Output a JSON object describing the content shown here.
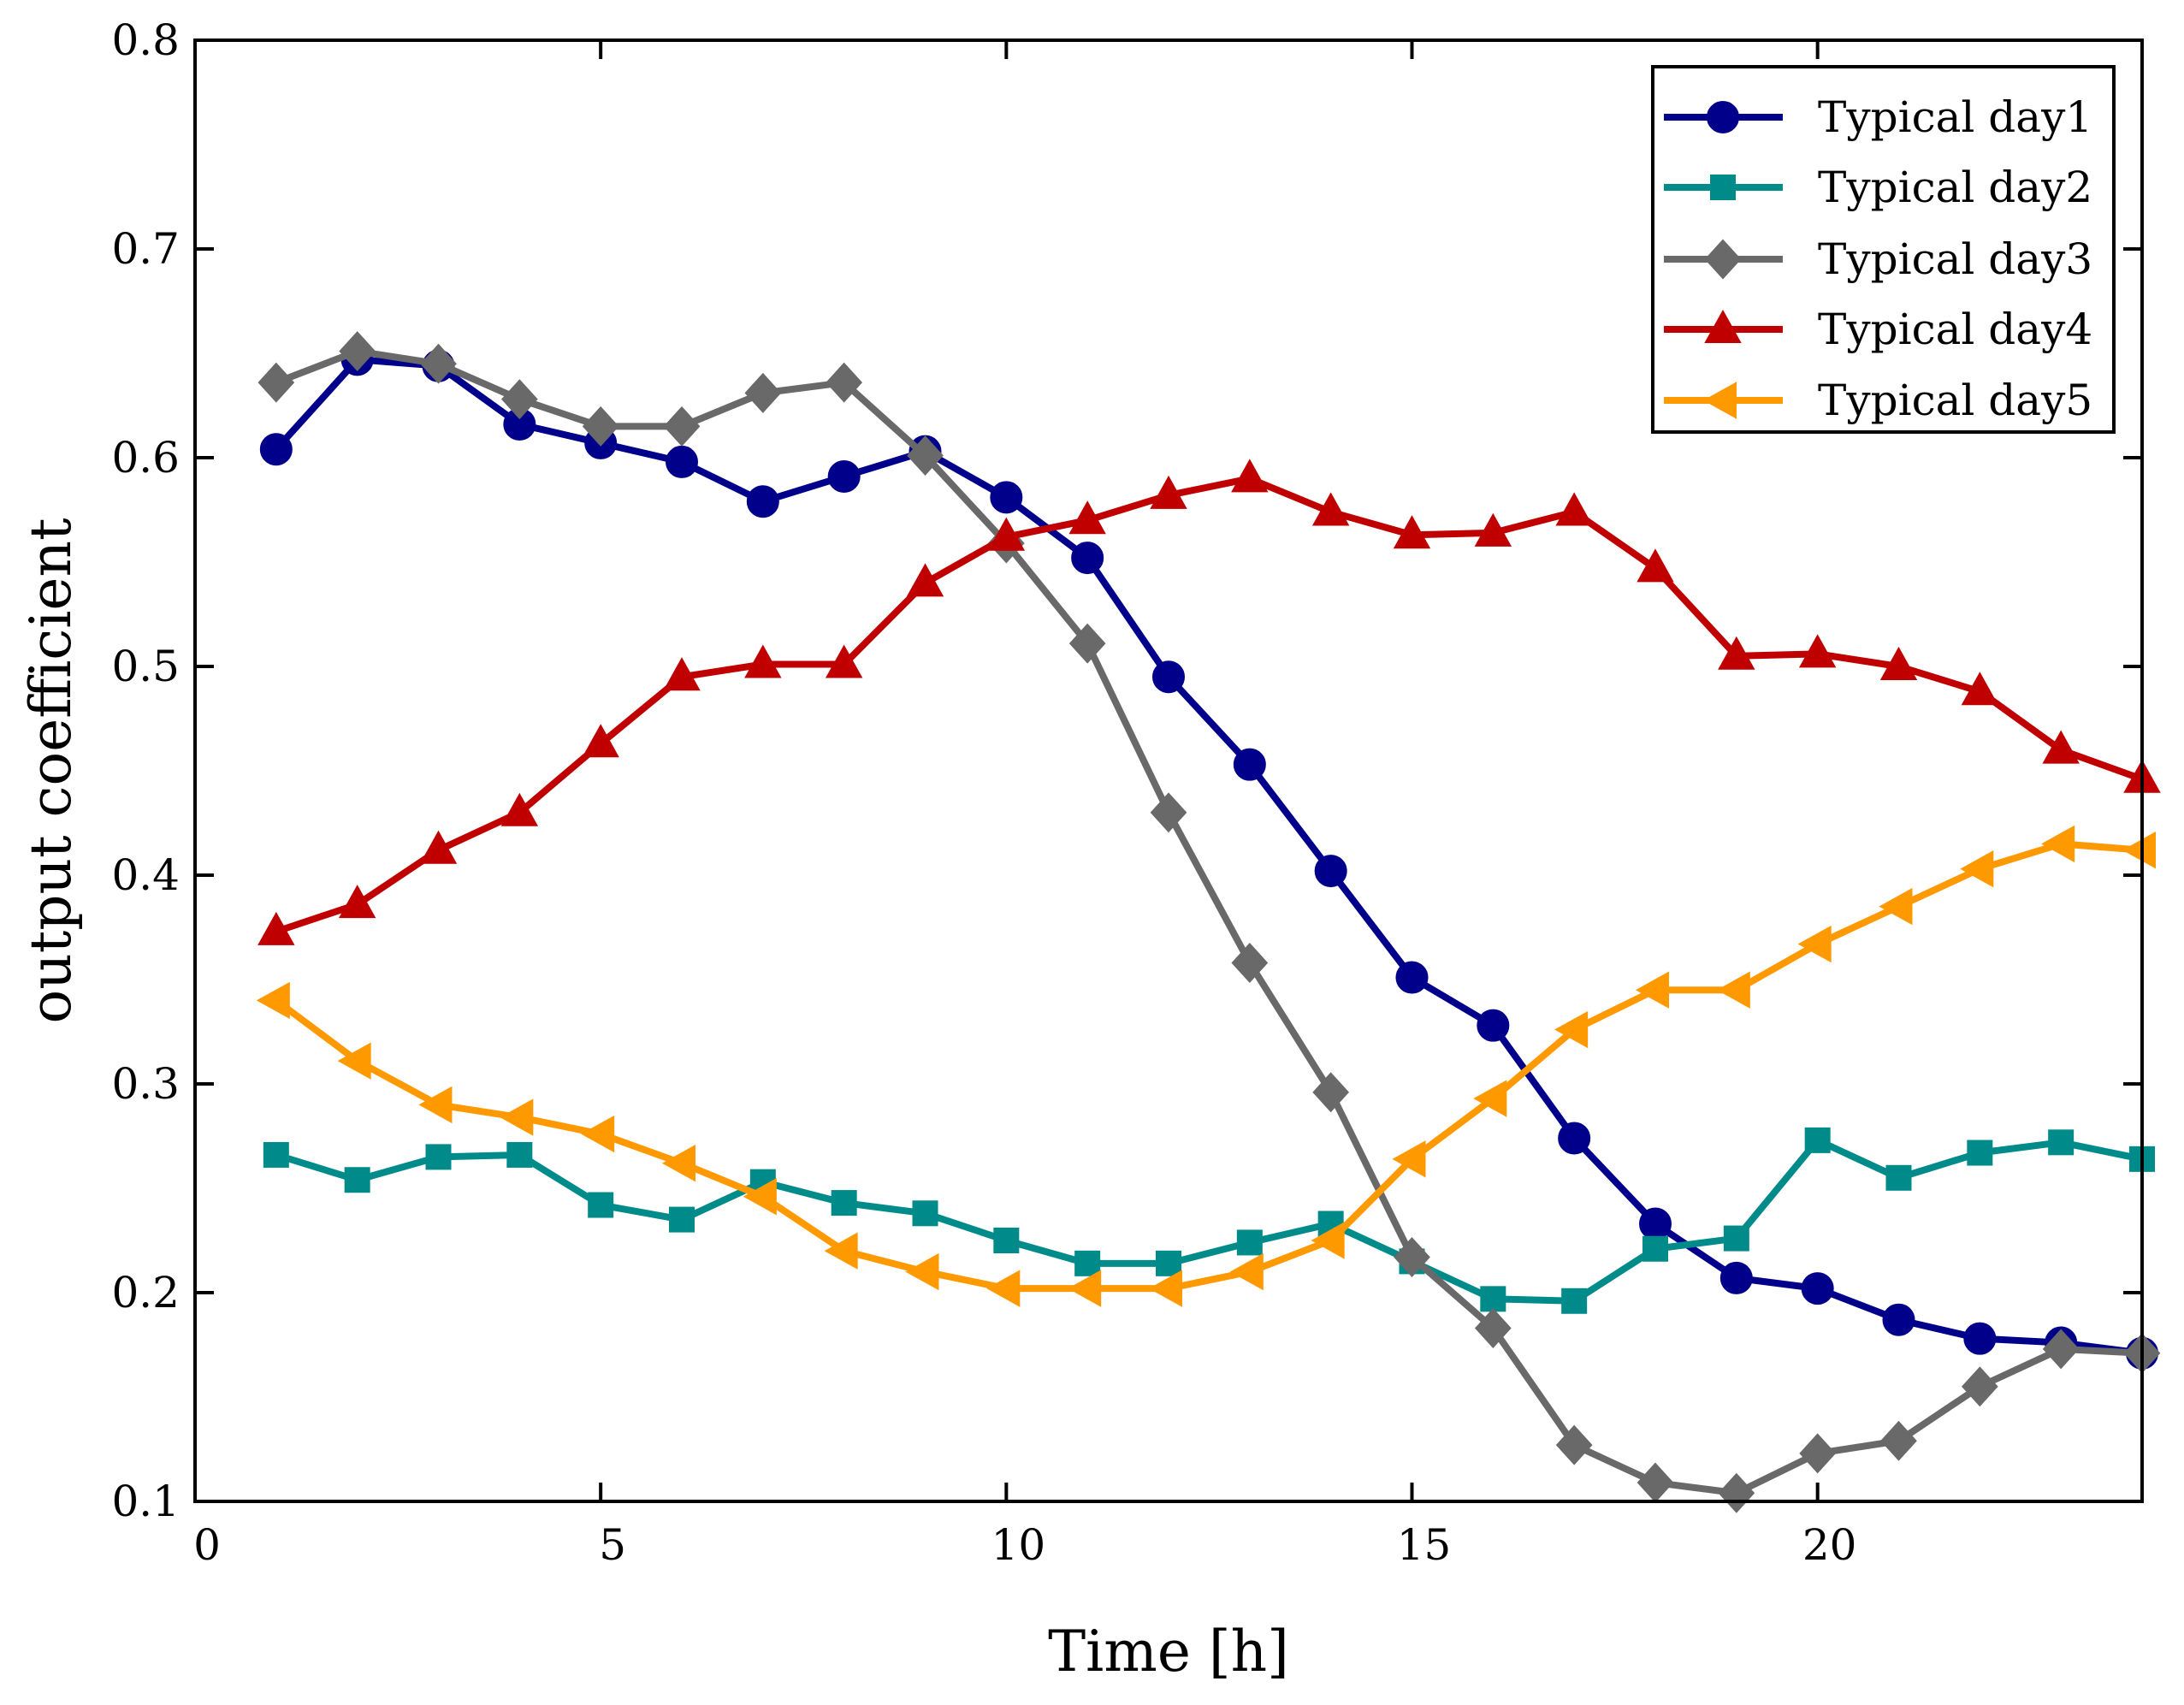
{
  "chart_data": {
    "type": "line",
    "title": "",
    "xlabel": "Time [h]",
    "ylabel": "output coefficient",
    "xlim": [
      0,
      24
    ],
    "ylim": [
      0.1,
      0.8
    ],
    "xticks": [
      "0",
      "5",
      "10",
      "15",
      "20"
    ],
    "xtick_values": [
      0,
      5,
      10,
      15,
      20
    ],
    "yticks": [
      "0.1",
      "0.2",
      "0.3",
      "0.4",
      "0.5",
      "0.6",
      "0.7",
      "0.8"
    ],
    "ytick_values": [
      0.1,
      0.2,
      0.3,
      0.4,
      0.5,
      0.6,
      0.7,
      0.8
    ],
    "grid": false,
    "legend_position": "top-right",
    "x": [
      1,
      2,
      3,
      4,
      5,
      6,
      7,
      8,
      9,
      10,
      11,
      12,
      13,
      14,
      15,
      16,
      17,
      18,
      19,
      20,
      21,
      22,
      23,
      24
    ],
    "series": [
      {
        "name": "Typical day1",
        "color": "#00008B",
        "marker": "circle",
        "values": [
          0.604,
          0.647,
          0.644,
          0.616,
          0.607,
          0.598,
          0.579,
          0.591,
          0.603,
          0.581,
          0.552,
          0.495,
          0.453,
          0.402,
          0.351,
          0.328,
          0.274,
          0.233,
          0.207,
          0.202,
          0.187,
          0.178,
          0.176,
          0.171
        ]
      },
      {
        "name": "Typical day2",
        "color": "#008B8B",
        "marker": "square",
        "values": [
          0.266,
          0.254,
          0.265,
          0.266,
          0.242,
          0.235,
          0.253,
          0.243,
          0.238,
          0.225,
          0.214,
          0.214,
          0.224,
          0.233,
          0.215,
          0.197,
          0.196,
          0.221,
          0.226,
          0.273,
          0.255,
          0.267,
          0.272,
          0.264
        ]
      },
      {
        "name": "Typical day3",
        "color": "#696969",
        "marker": "diamond",
        "values": [
          0.636,
          0.651,
          0.645,
          0.628,
          0.615,
          0.615,
          0.631,
          0.636,
          0.601,
          0.559,
          0.511,
          0.43,
          0.358,
          0.296,
          0.217,
          0.183,
          0.127,
          0.109,
          0.104,
          0.123,
          0.129,
          0.155,
          0.173,
          0.171
        ]
      },
      {
        "name": "Typical day4",
        "color": "#C00000",
        "marker": "triangle-up",
        "values": [
          0.373,
          0.386,
          0.412,
          0.43,
          0.463,
          0.495,
          0.501,
          0.501,
          0.54,
          0.562,
          0.57,
          0.582,
          0.59,
          0.574,
          0.563,
          0.564,
          0.574,
          0.547,
          0.505,
          0.506,
          0.5,
          0.488,
          0.46,
          0.446
        ]
      },
      {
        "name": "Typical day5",
        "color": "#FF9900",
        "marker": "triangle-left",
        "values": [
          0.34,
          0.311,
          0.29,
          0.284,
          0.276,
          0.262,
          0.246,
          0.22,
          0.21,
          0.202,
          0.202,
          0.202,
          0.21,
          0.225,
          0.264,
          0.293,
          0.326,
          0.345,
          0.345,
          0.367,
          0.385,
          0.403,
          0.415,
          0.412
        ]
      }
    ]
  }
}
